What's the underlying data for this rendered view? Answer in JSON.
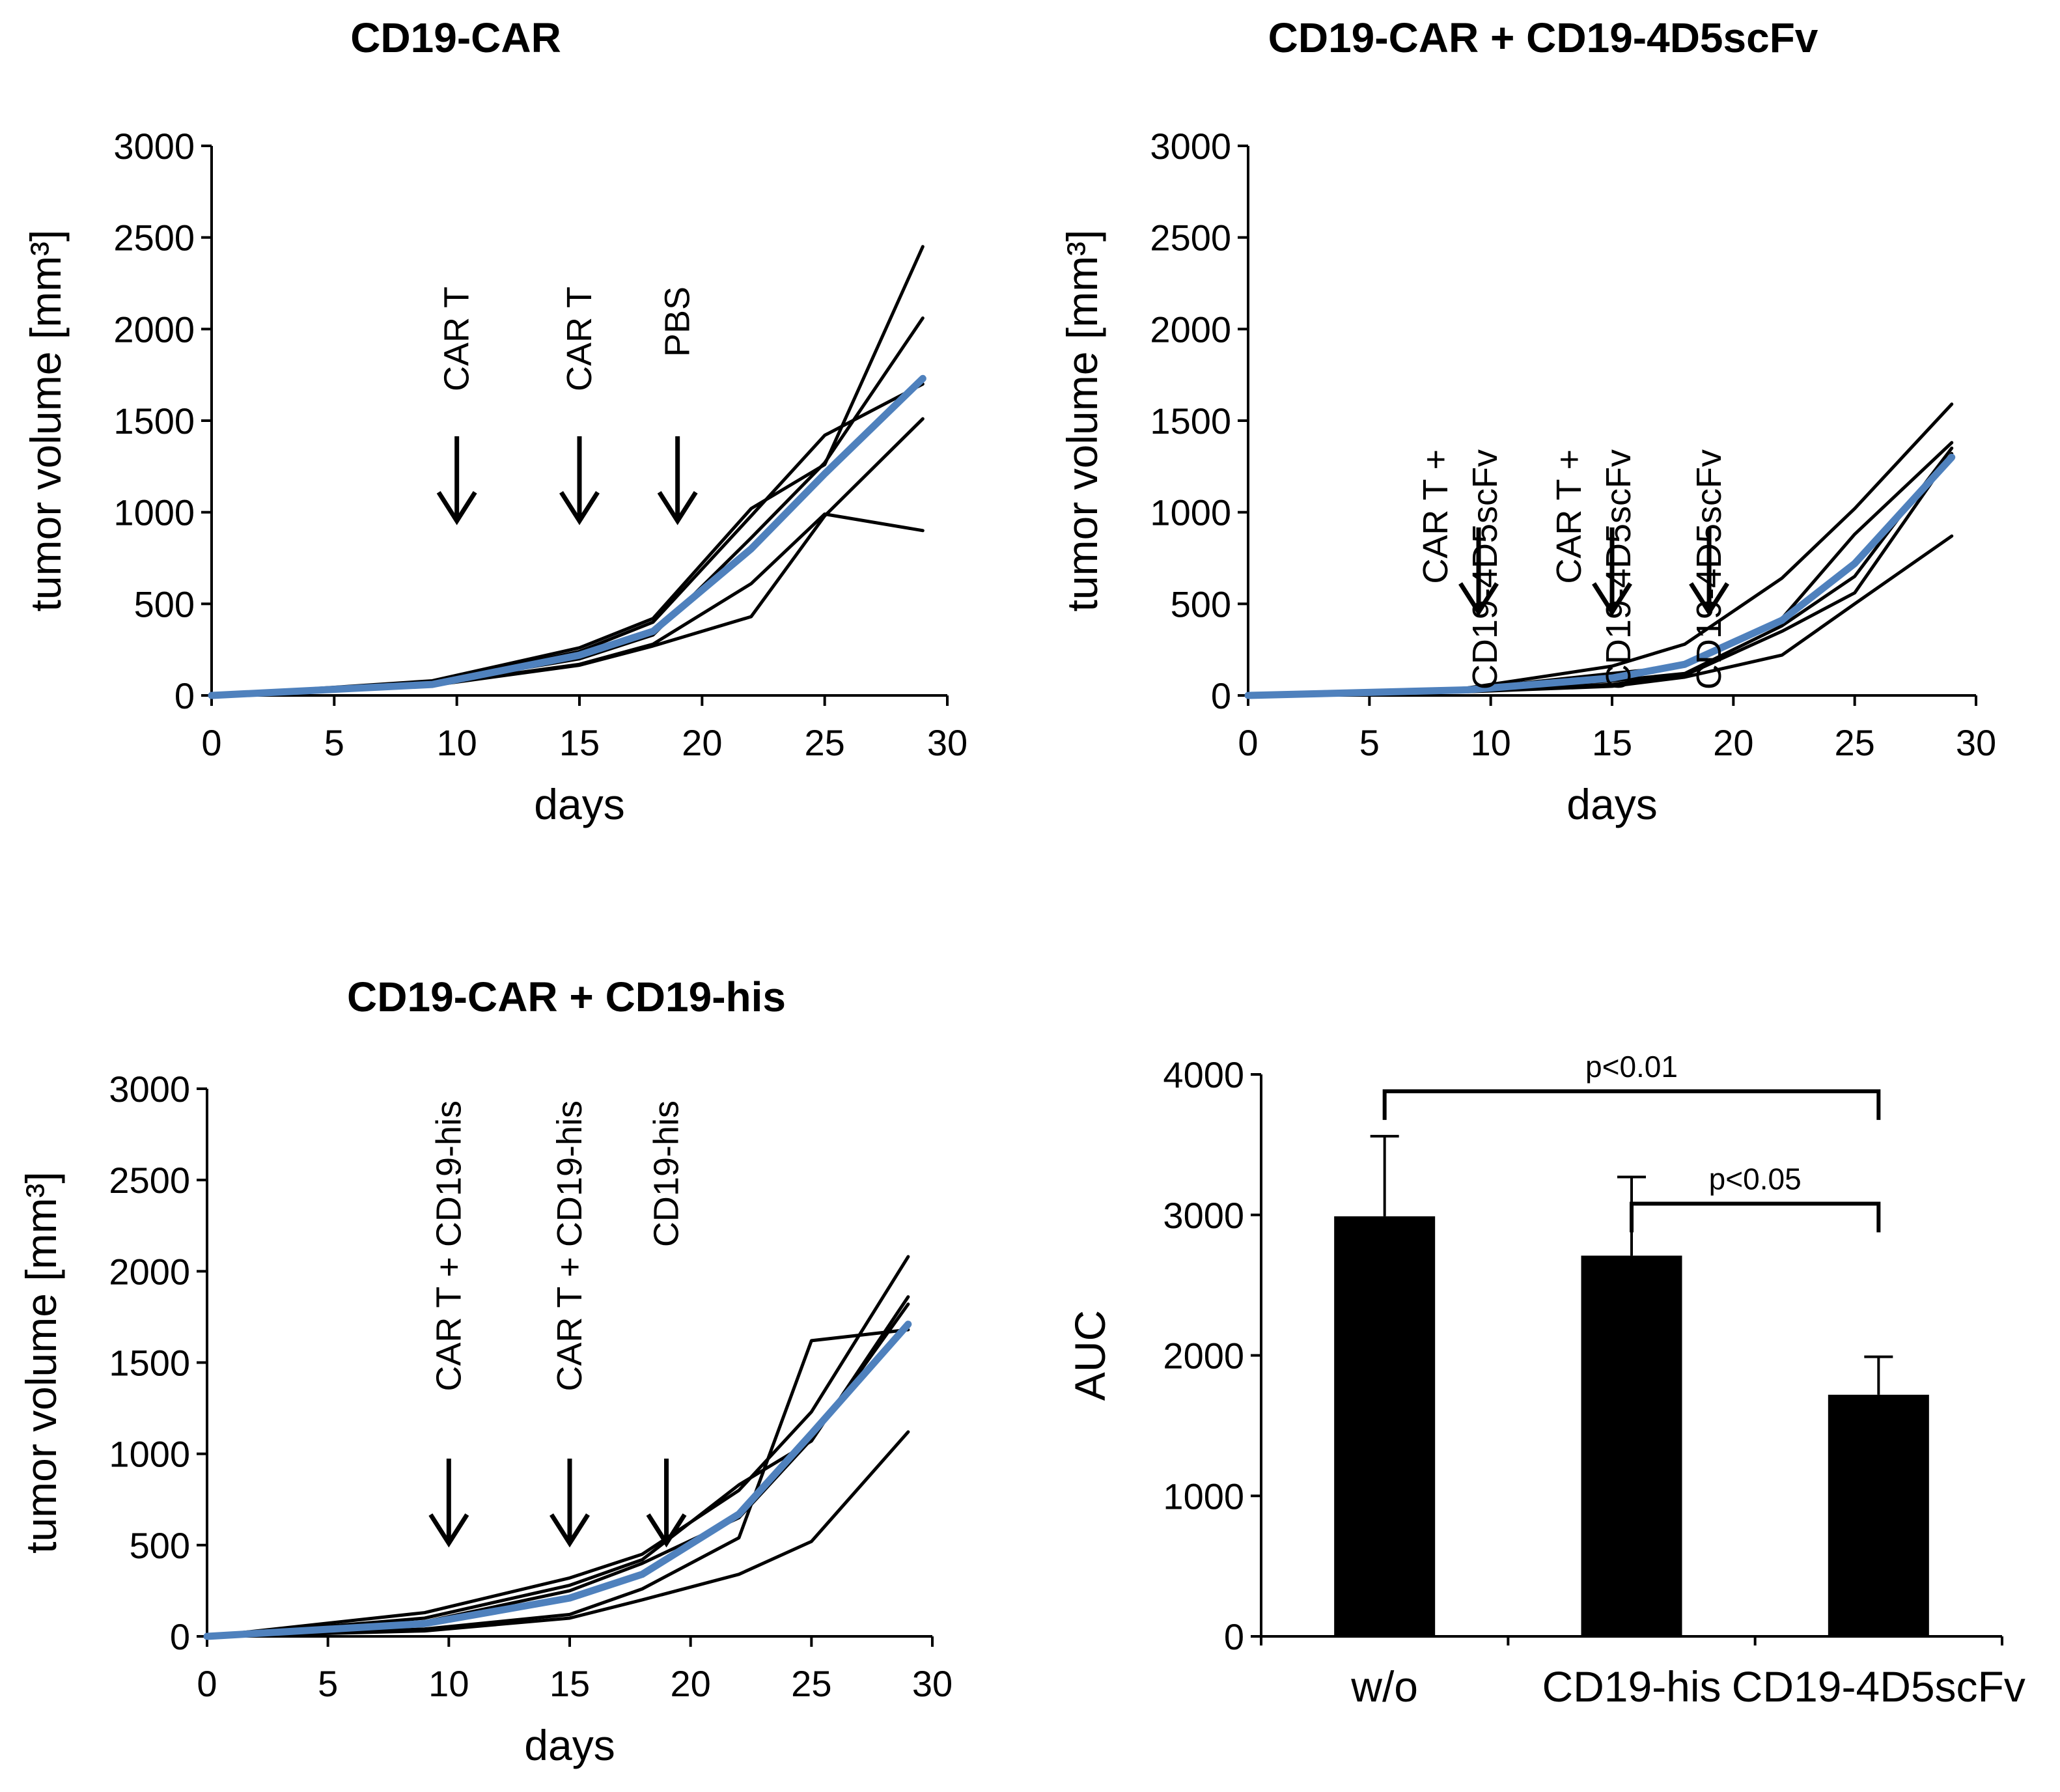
{
  "charts": [
    {
      "type": "line",
      "title": "CD19-CAR",
      "xlabel": "days",
      "ylabel": "tumor volume [mm³]",
      "xlim": [
        0,
        30
      ],
      "ylim": [
        0,
        3000
      ],
      "xticks": [
        "0",
        "5",
        "10",
        "15",
        "20",
        "25",
        "30"
      ],
      "yticks": [
        "0",
        "500",
        "1000",
        "1500",
        "2000",
        "2500",
        "3000"
      ],
      "x": [
        0,
        9,
        15,
        18,
        22,
        25,
        29
      ],
      "series": [
        {
          "color": "#000000",
          "values": [
            0,
            80,
            260,
            420,
            1020,
            1260,
            2450
          ]
        },
        {
          "color": "#000000",
          "values": [
            0,
            70,
            240,
            400,
            980,
            1420,
            1700
          ]
        },
        {
          "color": "#000000",
          "values": [
            0,
            65,
            200,
            330,
            860,
            1270,
            2060
          ]
        },
        {
          "color": "#000000",
          "values": [
            0,
            60,
            170,
            280,
            610,
            990,
            900
          ]
        },
        {
          "color": "#000000",
          "values": [
            0,
            55,
            165,
            270,
            430,
            980,
            1510
          ]
        },
        {
          "color": "#4f81bd",
          "mean": true,
          "values": [
            0,
            60,
            220,
            350,
            800,
            1210,
            1730
          ]
        }
      ],
      "annotations": [
        {
          "label": "CAR T",
          "day": 10
        },
        {
          "label": "CAR T",
          "day": 15
        },
        {
          "label": "PBS",
          "day": 19
        }
      ]
    },
    {
      "type": "line",
      "title": "CD19-CAR  +  CD19-4D5scFv",
      "xlabel": "days",
      "ylabel": "tumor volume [mm³]",
      "xlim": [
        0,
        30
      ],
      "ylim": [
        0,
        3000
      ],
      "xticks": [
        "0",
        "5",
        "10",
        "15",
        "20",
        "25",
        "30"
      ],
      "yticks": [
        "0",
        "500",
        "1000",
        "1500",
        "2000",
        "2500",
        "3000"
      ],
      "x": [
        0,
        9,
        15,
        18,
        22,
        25,
        29
      ],
      "series": [
        {
          "color": "#000000",
          "values": [
            0,
            40,
            160,
            280,
            640,
            1020,
            1590
          ]
        },
        {
          "color": "#000000",
          "values": [
            0,
            35,
            120,
            160,
            420,
            880,
            1380
          ]
        },
        {
          "color": "#000000",
          "values": [
            0,
            30,
            80,
            120,
            380,
            650,
            1350
          ]
        },
        {
          "color": "#000000",
          "values": [
            0,
            25,
            60,
            110,
            350,
            560,
            1320
          ]
        },
        {
          "color": "#000000",
          "values": [
            0,
            20,
            50,
            100,
            220,
            500,
            870
          ]
        },
        {
          "color": "#4f81bd",
          "mean": true,
          "values": [
            0,
            30,
            95,
            170,
            410,
            720,
            1300
          ]
        }
      ],
      "annotations": [
        {
          "label": "CAR T +",
          "label2": "CD19-4D5scFv",
          "day": 9.5
        },
        {
          "label": "CAR T +",
          "label2": "CD19-4D5scFv",
          "day": 15
        },
        {
          "label": "CD19-4D5scFv",
          "day": 19
        }
      ]
    },
    {
      "type": "line",
      "title": "CD19-CAR + CD19-his",
      "xlabel": "days",
      "ylabel": "tumor volume [mm³]",
      "xlim": [
        0,
        30
      ],
      "ylim": [
        0,
        3000
      ],
      "xticks": [
        "0",
        "5",
        "10",
        "15",
        "20",
        "25",
        "30"
      ],
      "yticks": [
        "0",
        "500",
        "1000",
        "1500",
        "2000",
        "2500",
        "3000"
      ],
      "x": [
        0,
        9,
        15,
        18,
        22,
        25,
        29
      ],
      "series": [
        {
          "color": "#000000",
          "values": [
            0,
            130,
            320,
            450,
            800,
            1230,
            2080
          ]
        },
        {
          "color": "#000000",
          "values": [
            0,
            100,
            280,
            420,
            830,
            1070,
            1860
          ]
        },
        {
          "color": "#000000",
          "values": [
            0,
            80,
            250,
            400,
            650,
            1080,
            1820
          ]
        },
        {
          "color": "#000000",
          "values": [
            0,
            40,
            120,
            260,
            540,
            1620,
            1680
          ]
        },
        {
          "color": "#000000",
          "values": [
            0,
            30,
            100,
            200,
            340,
            520,
            1120
          ]
        },
        {
          "color": "#4f81bd",
          "mean": true,
          "values": [
            0,
            70,
            210,
            340,
            670,
            1110,
            1710
          ]
        }
      ],
      "annotations": [
        {
          "label": "CAR T + CD19-his",
          "day": 10
        },
        {
          "label": "CAR T + CD19-his",
          "day": 15
        },
        {
          "label": "CD19-his",
          "day": 19
        }
      ]
    },
    {
      "type": "bar",
      "ylabel": "AUC",
      "ylim": [
        0,
        4000
      ],
      "yticks": [
        "0",
        "1000",
        "2000",
        "3000",
        "4000"
      ],
      "categories": [
        "w/o",
        "CD19-his",
        "CD19-4D5scFv"
      ],
      "values": [
        2990,
        2710,
        1720
      ],
      "errors": [
        570,
        560,
        270
      ],
      "color": "#000000",
      "significance": [
        {
          "from": 0,
          "to": 2,
          "label": "p<0.01",
          "level": 3880
        },
        {
          "from": 1,
          "to": 2,
          "label": "p<0.05",
          "level": 3080
        }
      ]
    }
  ]
}
